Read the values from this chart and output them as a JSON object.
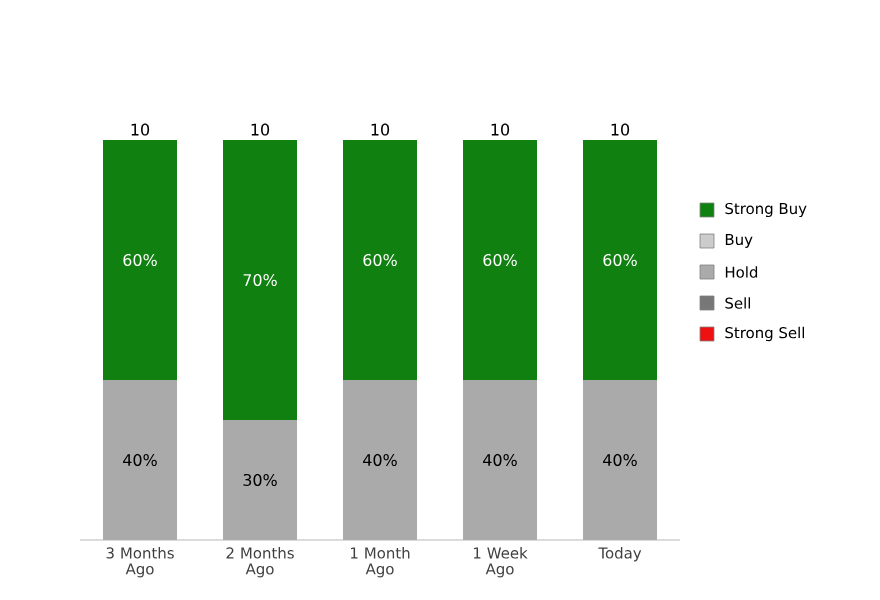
{
  "chart_data": {
    "type": "bar",
    "stacked": true,
    "legend": "right",
    "categories": [
      "3 Months Ago",
      "2 Months Ago",
      "1 Month Ago",
      "1 Week Ago",
      "Today"
    ],
    "series": [
      {
        "name": "Strong Sell",
        "color": "#ee1111",
        "values": [
          null,
          null,
          null,
          null,
          null
        ]
      },
      {
        "name": "Sell",
        "color": "#777777",
        "values": [
          null,
          null,
          null,
          null,
          null
        ]
      },
      {
        "name": "Hold",
        "color": "#aaaaaa",
        "values": [
          40,
          30,
          40,
          40,
          40
        ],
        "value_labels": [
          "40%",
          "30%",
          "40%",
          "40%",
          "40%"
        ]
      },
      {
        "name": "Buy",
        "color": "#cccccc",
        "values": [
          null,
          null,
          null,
          null,
          null
        ]
      },
      {
        "name": "Strong Buy",
        "color": "#108010",
        "values": [
          60,
          70,
          60,
          60,
          60
        ],
        "value_labels": [
          "60%",
          "70%",
          "60%",
          "60%",
          "60%"
        ]
      }
    ],
    "annotations": [
      "10",
      "10",
      "10",
      "10",
      "10"
    ]
  }
}
